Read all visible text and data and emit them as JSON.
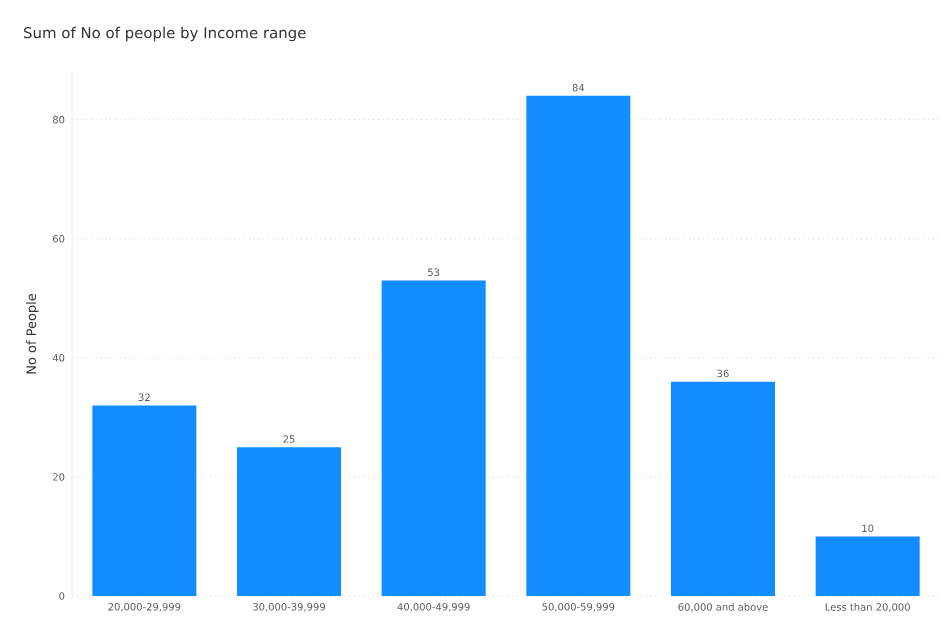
{
  "chart_data": {
    "type": "bar",
    "title": "Sum of No of people by Income range",
    "ylabel": "No of People",
    "categories": [
      "20,000-29,999",
      "30,000-39,999",
      "40,000-49,999",
      "50,000-59,999",
      "60,000 and above",
      "Less than 20,000"
    ],
    "values": [
      32,
      25,
      53,
      84,
      36,
      10
    ],
    "ylim": [
      0,
      88
    ],
    "color": "#118dff",
    "yticks": [
      0,
      20,
      40,
      60,
      80
    ],
    "grid": "y",
    "data_labels": true
  }
}
